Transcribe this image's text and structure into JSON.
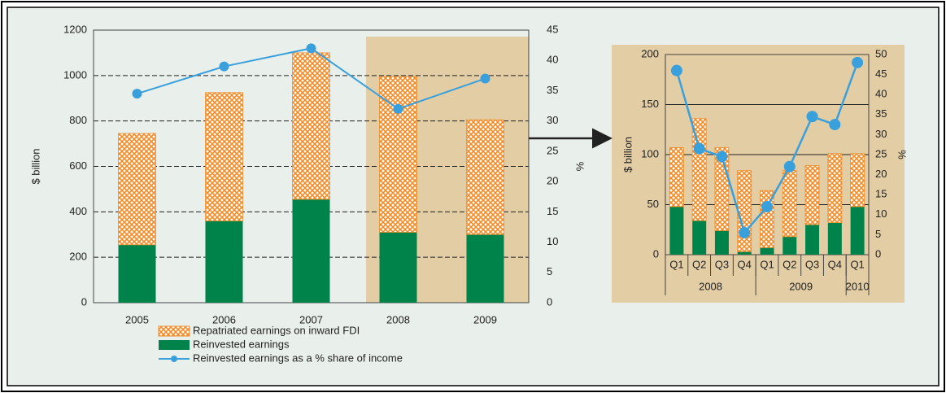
{
  "chart_data": [
    {
      "type": "bar",
      "stacked": true,
      "categories": [
        "2005",
        "2006",
        "2007",
        "2008",
        "2009"
      ],
      "ylabel": "$ billion",
      "y2label": "%",
      "ylim": [
        0,
        1200
      ],
      "yticks": [
        0,
        200,
        400,
        600,
        800,
        1000,
        1200
      ],
      "y2lim": [
        0,
        45
      ],
      "y2ticks": [
        0,
        5,
        10,
        15,
        20,
        25,
        30,
        35,
        40,
        45
      ],
      "grid": true,
      "legend": "bottom",
      "series": [
        {
          "name": "Reinvested earnings",
          "color": "#00834a",
          "values": [
            255,
            360,
            455,
            310,
            300
          ]
        },
        {
          "name": "Repatriated earnings on inward FDI",
          "color": "#f28c28",
          "pattern": "crosshatch",
          "values": [
            490,
            565,
            645,
            685,
            505
          ]
        },
        {
          "name": "Reinvested earnings as a % share of income",
          "color": "#3aa0dc",
          "type": "line",
          "axis": "y2",
          "values": [
            34.5,
            39,
            42,
            32,
            37
          ]
        }
      ]
    },
    {
      "type": "bar",
      "stacked": true,
      "groups": [
        {
          "label": "2008",
          "categories": [
            "Q1",
            "Q2",
            "Q3",
            "Q4"
          ]
        },
        {
          "label": "2009",
          "categories": [
            "Q1",
            "Q2",
            "Q3",
            "Q4"
          ]
        },
        {
          "label": "2010",
          "categories": [
            "Q1"
          ]
        }
      ],
      "ylabel": "$ billion",
      "y2label": "%",
      "ylim": [
        0,
        200
      ],
      "yticks": [
        0,
        50,
        100,
        150,
        200
      ],
      "y2lim": [
        0,
        50
      ],
      "y2ticks": [
        0,
        5,
        10,
        15,
        20,
        25,
        30,
        35,
        40,
        45,
        50
      ],
      "grid": true,
      "series": [
        {
          "color": "#00834a",
          "values": [
            48,
            34,
            24,
            3,
            7,
            18,
            30,
            32,
            48
          ]
        },
        {
          "color": "#f28c28",
          "pattern": "crosshatch",
          "values": [
            59,
            102,
            83,
            81,
            57,
            66,
            59,
            69,
            53
          ]
        },
        {
          "color": "#3aa0dc",
          "type": "line",
          "axis": "y2",
          "values": [
            46,
            26.5,
            24.5,
            5.5,
            12,
            22,
            34.5,
            32.5,
            48
          ]
        }
      ]
    }
  ]
}
